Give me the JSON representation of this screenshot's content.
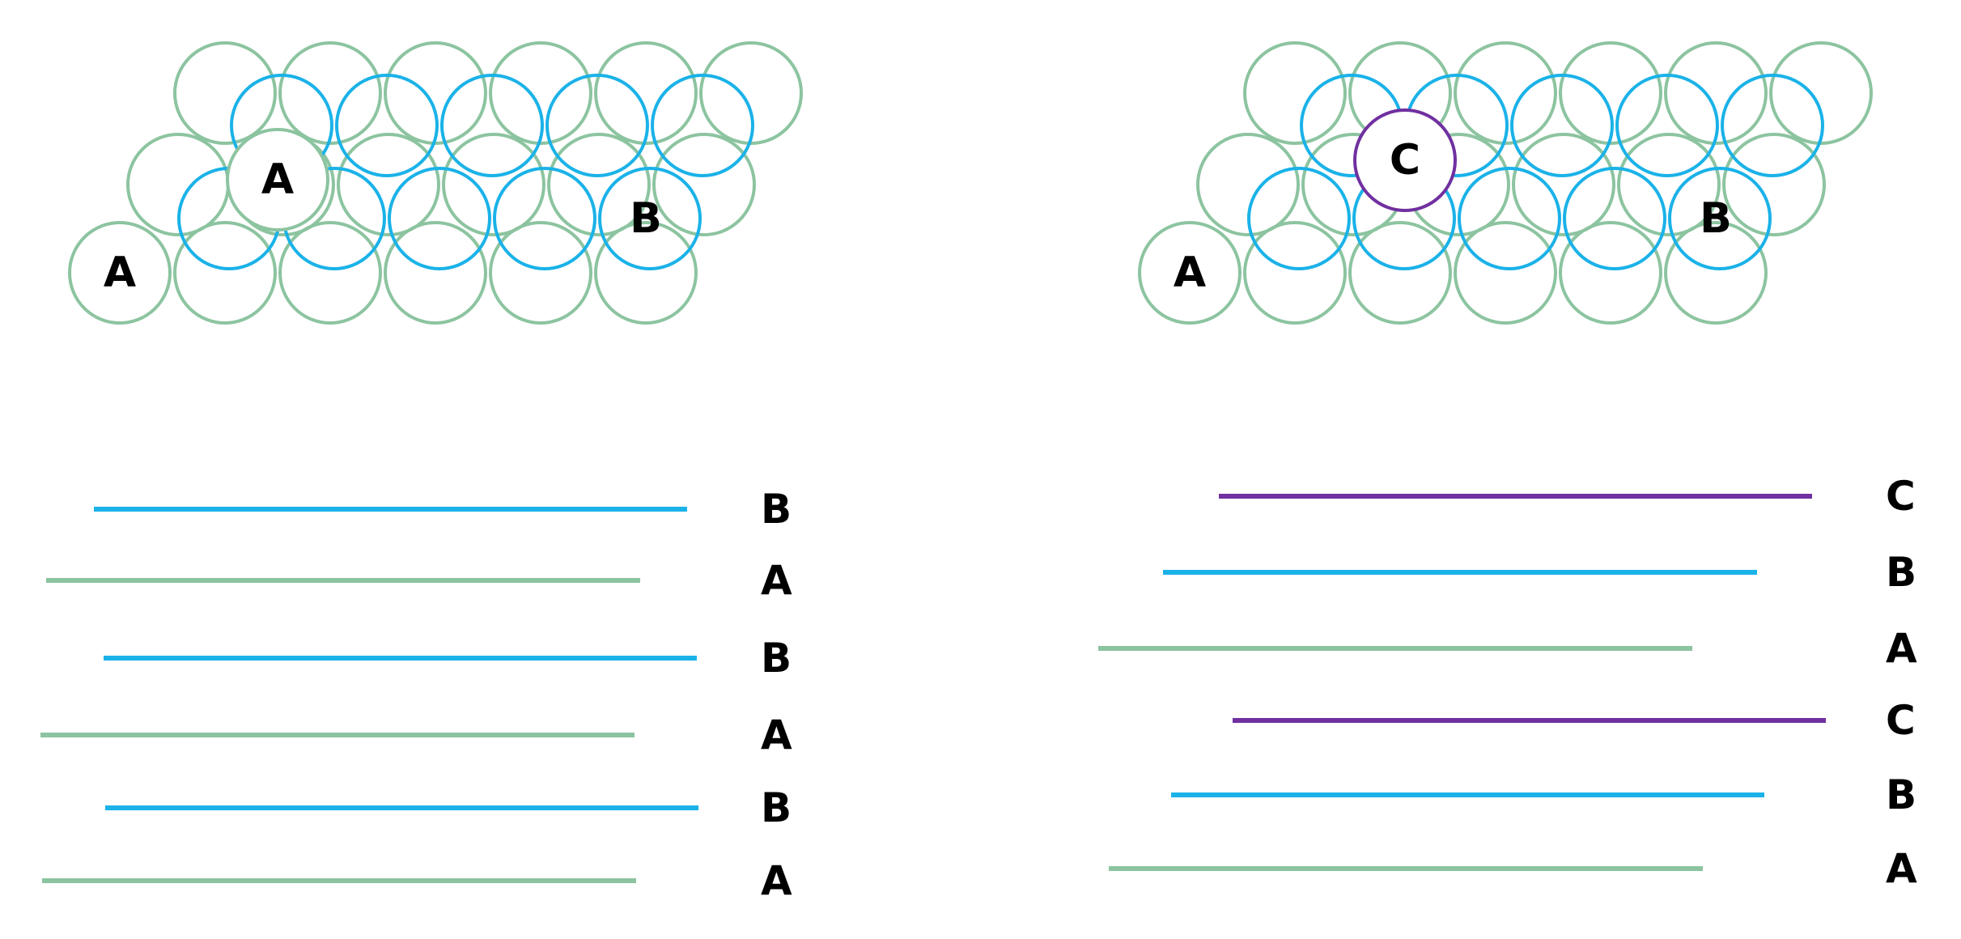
{
  "colors": {
    "A": "#8cc4a0",
    "B": "#1ab2e8",
    "C": "#7030a0",
    "text": "#000000"
  },
  "left_panel": {
    "circle_labels": {
      "a_bottom": "A",
      "a_top": "A",
      "b": "B"
    },
    "layer_sequence": [
      {
        "type": "B",
        "label": "B"
      },
      {
        "type": "A",
        "label": "A"
      },
      {
        "type": "B",
        "label": "B"
      },
      {
        "type": "A",
        "label": "A"
      },
      {
        "type": "B",
        "label": "B"
      },
      {
        "type": "A",
        "label": "A"
      }
    ]
  },
  "right_panel": {
    "circle_labels": {
      "a": "A",
      "b": "B",
      "c": "C"
    },
    "layer_sequence": [
      {
        "type": "C",
        "label": "C"
      },
      {
        "type": "B",
        "label": "B"
      },
      {
        "type": "A",
        "label": "A"
      },
      {
        "type": "C",
        "label": "C"
      },
      {
        "type": "B",
        "label": "B"
      },
      {
        "type": "A",
        "label": "A"
      }
    ]
  }
}
